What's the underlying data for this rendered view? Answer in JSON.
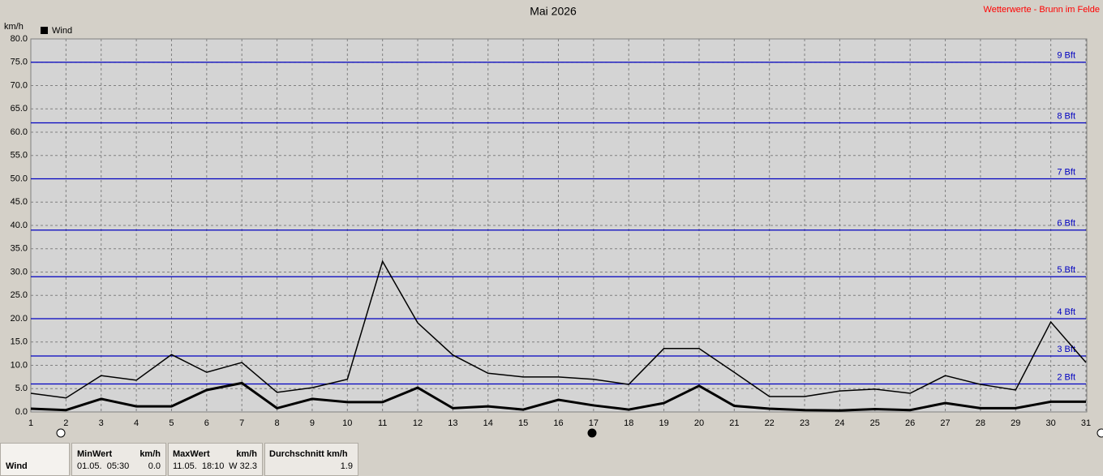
{
  "chart_data": {
    "type": "line",
    "title": "Mai 2026",
    "subtitle": "Wetterwerte - Brunn im Felde",
    "y_label": "km/h",
    "x": [
      1,
      2,
      3,
      4,
      5,
      6,
      7,
      8,
      9,
      10,
      11,
      12,
      13,
      14,
      15,
      16,
      17,
      18,
      19,
      20,
      21,
      22,
      23,
      24,
      25,
      26,
      27,
      28,
      29,
      30,
      31
    ],
    "series": [
      {
        "name": "Wind",
        "color": "#000000",
        "values": [
          4.0,
          3.0,
          7.8,
          6.8,
          12.3,
          8.5,
          10.6,
          4.2,
          5.2,
          7.0,
          32.3,
          19.1,
          12.2,
          8.3,
          7.5,
          7.5,
          7.0,
          5.9,
          13.6,
          13.6,
          8.5,
          3.3,
          3.3,
          4.5,
          4.9,
          4.0,
          7.8,
          5.9,
          4.7,
          19.3,
          10.6
        ],
        "mean_values": [
          0.7,
          0.4,
          2.8,
          1.2,
          1.2,
          4.7,
          6.2,
          0.8,
          2.8,
          2.1,
          2.1,
          5.2,
          0.8,
          1.2,
          0.5,
          2.6,
          1.4,
          0.5,
          1.9,
          5.6,
          1.3,
          0.7,
          0.4,
          0.3,
          0.6,
          0.4,
          1.9,
          0.8,
          0.8,
          2.2,
          2.2
        ]
      }
    ],
    "xlim": [
      1,
      31
    ],
    "xticks": [
      1,
      2,
      3,
      4,
      5,
      6,
      7,
      8,
      9,
      10,
      11,
      12,
      13,
      14,
      15,
      16,
      17,
      18,
      19,
      20,
      21,
      22,
      23,
      24,
      25,
      26,
      27,
      28,
      29,
      30,
      31
    ],
    "ylim": [
      0,
      80
    ],
    "yticks": [
      {
        "value": 0,
        "label": "0.0"
      },
      {
        "value": 5,
        "label": "5.0"
      },
      {
        "value": 10,
        "label": "10.0"
      },
      {
        "value": 15,
        "label": "15.0"
      },
      {
        "value": 20,
        "label": "20.0"
      },
      {
        "value": 25,
        "label": "25.0"
      },
      {
        "value": 30,
        "label": "30.0"
      },
      {
        "value": 35,
        "label": "35.0"
      },
      {
        "value": 40,
        "label": "40.0"
      },
      {
        "value": 45,
        "label": "45.0"
      },
      {
        "value": 50,
        "label": "50.0"
      },
      {
        "value": 55,
        "label": "55.0"
      },
      {
        "value": 60,
        "label": "60.0"
      },
      {
        "value": 65,
        "label": "65.0"
      },
      {
        "value": 70,
        "label": "70.0"
      },
      {
        "value": 75,
        "label": "75.0"
      },
      {
        "value": 80,
        "label": "80.0"
      }
    ],
    "grid": true,
    "bft_color": "#0000c0",
    "bft_lines": [
      {
        "value": 6,
        "label": "2 Bft"
      },
      {
        "value": 12,
        "label": "3 Bft"
      },
      {
        "value": 20,
        "label": "4 Bft"
      },
      {
        "value": 29,
        "label": "5 Bft"
      },
      {
        "value": 39,
        "label": "6 Bft"
      },
      {
        "value": 50,
        "label": "7 Bft"
      },
      {
        "value": 62,
        "label": "8 Bft"
      },
      {
        "value": 75,
        "label": "9 Bft"
      }
    ]
  },
  "table": {
    "row_label": "Wind",
    "cells": [
      {
        "header": "MinWert",
        "unit": "km/h",
        "time": "01.05.  05:30",
        "value": "0.0"
      },
      {
        "header": "MaxWert",
        "unit": "km/h",
        "time": "11.05.  18:10",
        "value": "W 32.3"
      },
      {
        "header": "Durchschnitt km/h",
        "value": "1.9"
      }
    ]
  }
}
